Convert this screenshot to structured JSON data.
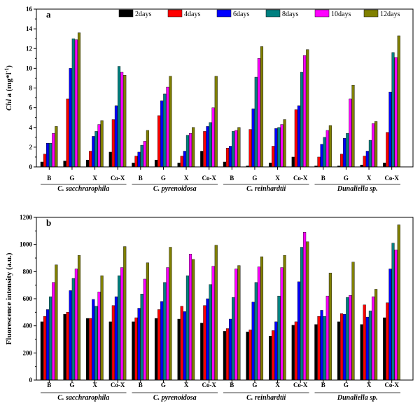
{
  "chart_data": [
    {
      "panel_label": "a",
      "type": "bar",
      "ylabel_italic": "Chl",
      "ylabel_rest": " a (mg*l",
      "ylabel_sup": "-1",
      "ylabel_close": ")",
      "ylim": [
        0,
        16
      ],
      "yticks": [
        "0",
        "2",
        "4",
        "6",
        "8",
        "10",
        "12",
        "14",
        "16"
      ],
      "categories": [
        "B",
        "G",
        "X",
        "Co-X",
        "B",
        "G",
        "X",
        "Co-X",
        "B",
        "G",
        "X",
        "Co-X",
        "B",
        "G",
        "X",
        "Co-X"
      ],
      "groups": [
        "C. sacchrarophila",
        "C. pyrenoidosa",
        "C. reinhardtii",
        "Dunaliella sp."
      ],
      "legend_position": "top",
      "series": [
        {
          "name": "2days",
          "color": "#000000",
          "values": [
            0.5,
            0.6,
            0.7,
            1.5,
            0.4,
            0.7,
            0.4,
            1.6,
            0.5,
            0.1,
            0.4,
            1.0,
            0.1,
            0.1,
            0.2,
            0.4
          ]
        },
        {
          "name": "4days",
          "color": "#ff0000",
          "values": [
            1.3,
            6.9,
            1.6,
            4.8,
            1.1,
            5.2,
            1.1,
            3.6,
            1.9,
            3.8,
            2.1,
            5.8,
            1.0,
            1.3,
            1.1,
            3.5
          ]
        },
        {
          "name": "6days",
          "color": "#0000ff",
          "values": [
            2.4,
            10.0,
            3.1,
            6.2,
            1.5,
            6.7,
            1.6,
            4.1,
            2.1,
            5.9,
            3.9,
            6.2,
            2.3,
            2.9,
            1.6,
            7.6
          ]
        },
        {
          "name": "8days",
          "color": "#008080",
          "values": [
            2.4,
            13.0,
            3.6,
            10.2,
            2.2,
            7.4,
            3.2,
            4.5,
            3.6,
            9.1,
            4.0,
            9.6,
            3.0,
            3.4,
            2.7,
            11.6
          ]
        },
        {
          "name": "10days",
          "color": "#ff00ff",
          "values": [
            3.4,
            12.9,
            4.3,
            9.6,
            2.6,
            8.1,
            3.4,
            6.0,
            3.7,
            11.0,
            4.3,
            11.3,
            3.7,
            6.9,
            4.4,
            11.1
          ]
        },
        {
          "name": "12days",
          "color": "#808000",
          "values": [
            4.1,
            13.6,
            4.7,
            9.3,
            3.7,
            9.2,
            4.0,
            9.2,
            4.0,
            12.2,
            4.8,
            11.9,
            4.2,
            8.3,
            4.6,
            13.3
          ]
        }
      ]
    },
    {
      "panel_label": "b",
      "type": "bar",
      "ylabel": "Fluorescence intensity (a.u.)",
      "ylim": [
        0,
        1200
      ],
      "yticks": [
        "0",
        "200",
        "400",
        "600",
        "800",
        "1000",
        "1200"
      ],
      "categories": [
        "B",
        "G",
        "X",
        "Co-X",
        "B",
        "G",
        "X",
        "Co-X",
        "B",
        "G",
        "X",
        "Co-X",
        "B",
        "G",
        "X",
        "Co-X"
      ],
      "groups": [
        "C. sacchrarophila",
        "C. pyrenoidosa",
        "C. reinhardtii",
        "Dunaliella sp."
      ],
      "series": [
        {
          "name": "2days",
          "color": "#000000",
          "values": [
            430,
            485,
            455,
            430,
            430,
            455,
            450,
            420,
            360,
            355,
            325,
            405,
            410,
            430,
            410,
            460
          ]
        },
        {
          "name": "4days",
          "color": "#ff0000",
          "values": [
            470,
            500,
            455,
            550,
            460,
            520,
            545,
            550,
            380,
            370,
            365,
            430,
            470,
            490,
            555,
            570
          ]
        },
        {
          "name": "6days",
          "color": "#0000ff",
          "values": [
            520,
            660,
            595,
            615,
            530,
            580,
            505,
            600,
            450,
            575,
            430,
            725,
            515,
            485,
            465,
            820
          ]
        },
        {
          "name": "8days",
          "color": "#008080",
          "values": [
            615,
            750,
            545,
            770,
            635,
            720,
            770,
            705,
            610,
            720,
            620,
            980,
            470,
            610,
            510,
            1010
          ]
        },
        {
          "name": "10days",
          "color": "#ff00ff",
          "values": [
            720,
            820,
            650,
            830,
            745,
            830,
            930,
            840,
            820,
            835,
            830,
            1090,
            620,
            625,
            615,
            960
          ]
        },
        {
          "name": "12days",
          "color": "#808000",
          "values": [
            850,
            920,
            770,
            985,
            865,
            980,
            890,
            995,
            845,
            910,
            920,
            1020,
            790,
            870,
            670,
            1145
          ]
        }
      ]
    }
  ]
}
